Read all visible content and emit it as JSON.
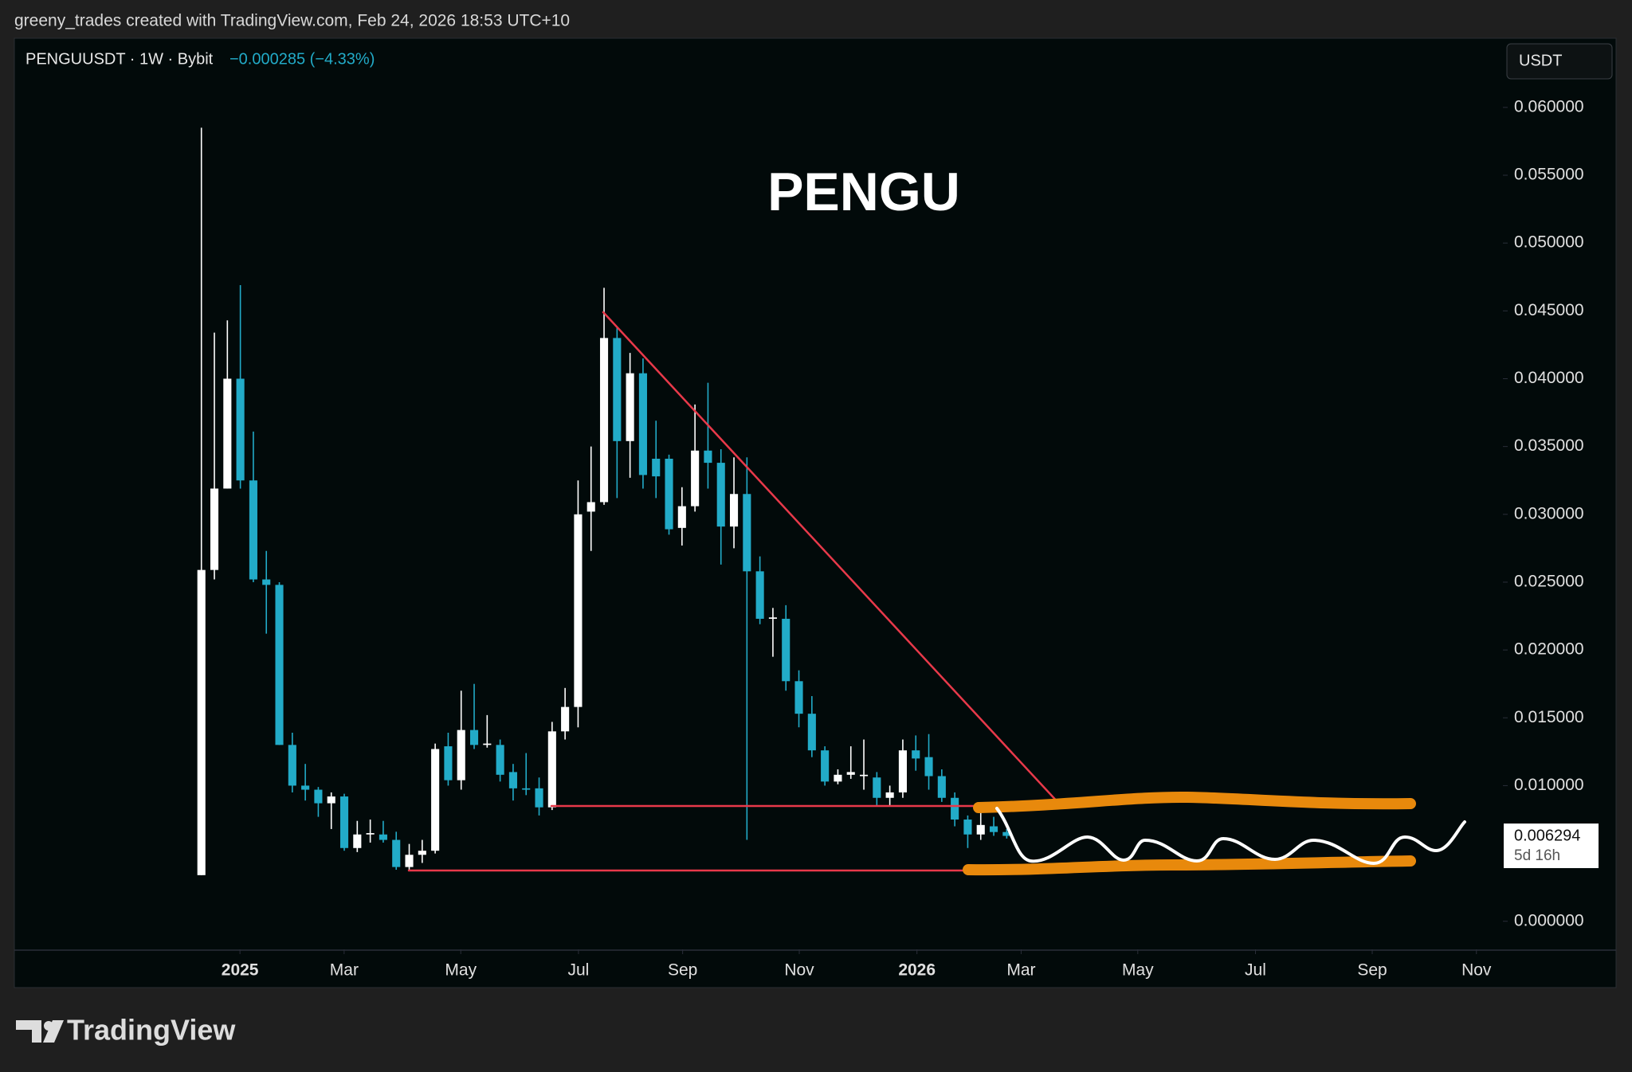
{
  "header": {
    "attribution": "greeny_trades created with TradingView.com, Feb 24, 2026 18:53 UTC+10",
    "logo": "TradingView"
  },
  "chart_data": {
    "type": "candlestick",
    "title": "PENGU",
    "symbol": "PENGUUSDT · 1W · Bybit",
    "change": "−0.000285 (−4.33%)",
    "currency": "USDT",
    "last_price": "0.006294",
    "countdown": "5d 16h",
    "up_color": "#ffffff",
    "down_color": "#22abc8",
    "open": [
      0.0034,
      0.0259,
      0.0319,
      0.04,
      0.0325,
      0.0252,
      0.0248,
      0.013,
      0.01,
      0.0097,
      0.0087,
      0.0092,
      0.0054,
      0.0064,
      0.0064,
      0.006,
      0.004,
      0.0049,
      0.0052,
      0.0129,
      0.0104,
      0.0141,
      0.013,
      0.013,
      0.011,
      0.0098,
      0.0098,
      0.0084,
      0.014,
      0.0158,
      0.0302,
      0.0309,
      0.043,
      0.0354,
      0.0404,
      0.0341,
      0.0341,
      0.029,
      0.0306,
      0.0347,
      0.0338,
      0.0291,
      0.0315,
      0.0258,
      0.0223,
      0.0223,
      0.0177,
      0.0153,
      0.0126,
      0.0103,
      0.0108,
      0.0107,
      0.0106,
      0.0091,
      0.0095,
      0.0126,
      0.0121,
      0.0107,
      0.0091,
      0.0075,
      0.0064,
      0.007,
      0.006579
    ],
    "high": [
      0.0585,
      0.0434,
      0.0443,
      0.0469,
      0.0361,
      0.0273,
      0.025,
      0.0139,
      0.0116,
      0.0099,
      0.0095,
      0.0094,
      0.0074,
      0.0075,
      0.0074,
      0.0066,
      0.0057,
      0.006,
      0.0131,
      0.0139,
      0.017,
      0.0175,
      0.0152,
      0.0134,
      0.0116,
      0.0124,
      0.0106,
      0.0147,
      0.0172,
      0.0325,
      0.035,
      0.0467,
      0.0438,
      0.0419,
      0.0415,
      0.0369,
      0.0344,
      0.032,
      0.0381,
      0.0397,
      0.0348,
      0.0342,
      0.0342,
      0.0269,
      0.0231,
      0.0233,
      0.0185,
      0.0166,
      0.0129,
      0.0112,
      0.0129,
      0.0134,
      0.011,
      0.01,
      0.0134,
      0.0137,
      0.0138,
      0.0112,
      0.0095,
      0.0078,
      0.0083,
      0.0077,
      0.0068
    ],
    "low": [
      0.0034,
      0.0252,
      0.0319,
      0.0319,
      0.025,
      0.0212,
      0.013,
      0.0095,
      0.0089,
      0.0077,
      0.0068,
      0.0052,
      0.0051,
      0.0058,
      0.0058,
      0.0038,
      0.0037,
      0.0043,
      0.005,
      0.01,
      0.0097,
      0.0127,
      0.0128,
      0.0103,
      0.0089,
      0.0093,
      0.0078,
      0.0082,
      0.0134,
      0.0143,
      0.0273,
      0.0307,
      0.0312,
      0.0327,
      0.0319,
      0.0312,
      0.0285,
      0.0277,
      0.0302,
      0.0319,
      0.0263,
      0.0275,
      0.006,
      0.0219,
      0.0195,
      0.017,
      0.0143,
      0.0121,
      0.01,
      0.0101,
      0.0105,
      0.0097,
      0.0085,
      0.0085,
      0.0091,
      0.0111,
      0.0097,
      0.0088,
      0.007,
      0.0054,
      0.006,
      0.0063,
      0.0061
    ],
    "close": [
      0.0259,
      0.0319,
      0.04,
      0.0325,
      0.0252,
      0.0248,
      0.013,
      0.01,
      0.0097,
      0.0087,
      0.0092,
      0.0054,
      0.0064,
      0.0065,
      0.006,
      0.004,
      0.0049,
      0.0052,
      0.0127,
      0.0104,
      0.0141,
      0.013,
      0.0131,
      0.0108,
      0.0098,
      0.0097,
      0.0084,
      0.014,
      0.0158,
      0.03,
      0.0309,
      0.043,
      0.0354,
      0.0404,
      0.0329,
      0.0328,
      0.0289,
      0.0306,
      0.0347,
      0.0338,
      0.0291,
      0.0315,
      0.0258,
      0.0223,
      0.0224,
      0.0177,
      0.0153,
      0.0126,
      0.0103,
      0.0108,
      0.011,
      0.0108,
      0.0091,
      0.0095,
      0.0126,
      0.012,
      0.0107,
      0.0091,
      0.0075,
      0.0064,
      0.0071,
      0.006579,
      0.006294
    ],
    "ylim": [
      -0.00207,
      0.0651
    ],
    "yticks": [
      {
        "value": 0,
        "label": "0.000000"
      },
      {
        "value": 0.01,
        "label": "0.010000"
      },
      {
        "value": 0.015,
        "label": "0.015000"
      },
      {
        "value": 0.02,
        "label": "0.020000"
      },
      {
        "value": 0.025,
        "label": "0.025000"
      },
      {
        "value": 0.03,
        "label": "0.030000"
      },
      {
        "value": 0.035,
        "label": "0.035000"
      },
      {
        "value": 0.04,
        "label": "0.040000"
      },
      {
        "value": 0.045,
        "label": "0.045000"
      },
      {
        "value": 0.05,
        "label": "0.050000"
      },
      {
        "value": 0.055,
        "label": "0.055000"
      },
      {
        "value": 0.06,
        "label": "0.060000"
      }
    ],
    "xlim": [
      -14.4,
      100.2
    ],
    "xticks": [
      {
        "value": 2.97,
        "label": "2025"
      },
      {
        "value": 10.99,
        "label": "Mar"
      },
      {
        "value": 19.97,
        "label": "May"
      },
      {
        "value": 29.03,
        "label": "Jul"
      },
      {
        "value": 37.05,
        "label": "Sep"
      },
      {
        "value": 46.03,
        "label": "Nov"
      },
      {
        "value": 55.09,
        "label": "2026"
      },
      {
        "value": 63.11,
        "label": "Mar"
      },
      {
        "value": 72.09,
        "label": "May"
      },
      {
        "value": 81.15,
        "label": "Jul"
      },
      {
        "value": 90.14,
        "label": "Sep"
      },
      {
        "value": 98.16,
        "label": "Nov"
      }
    ]
  }
}
